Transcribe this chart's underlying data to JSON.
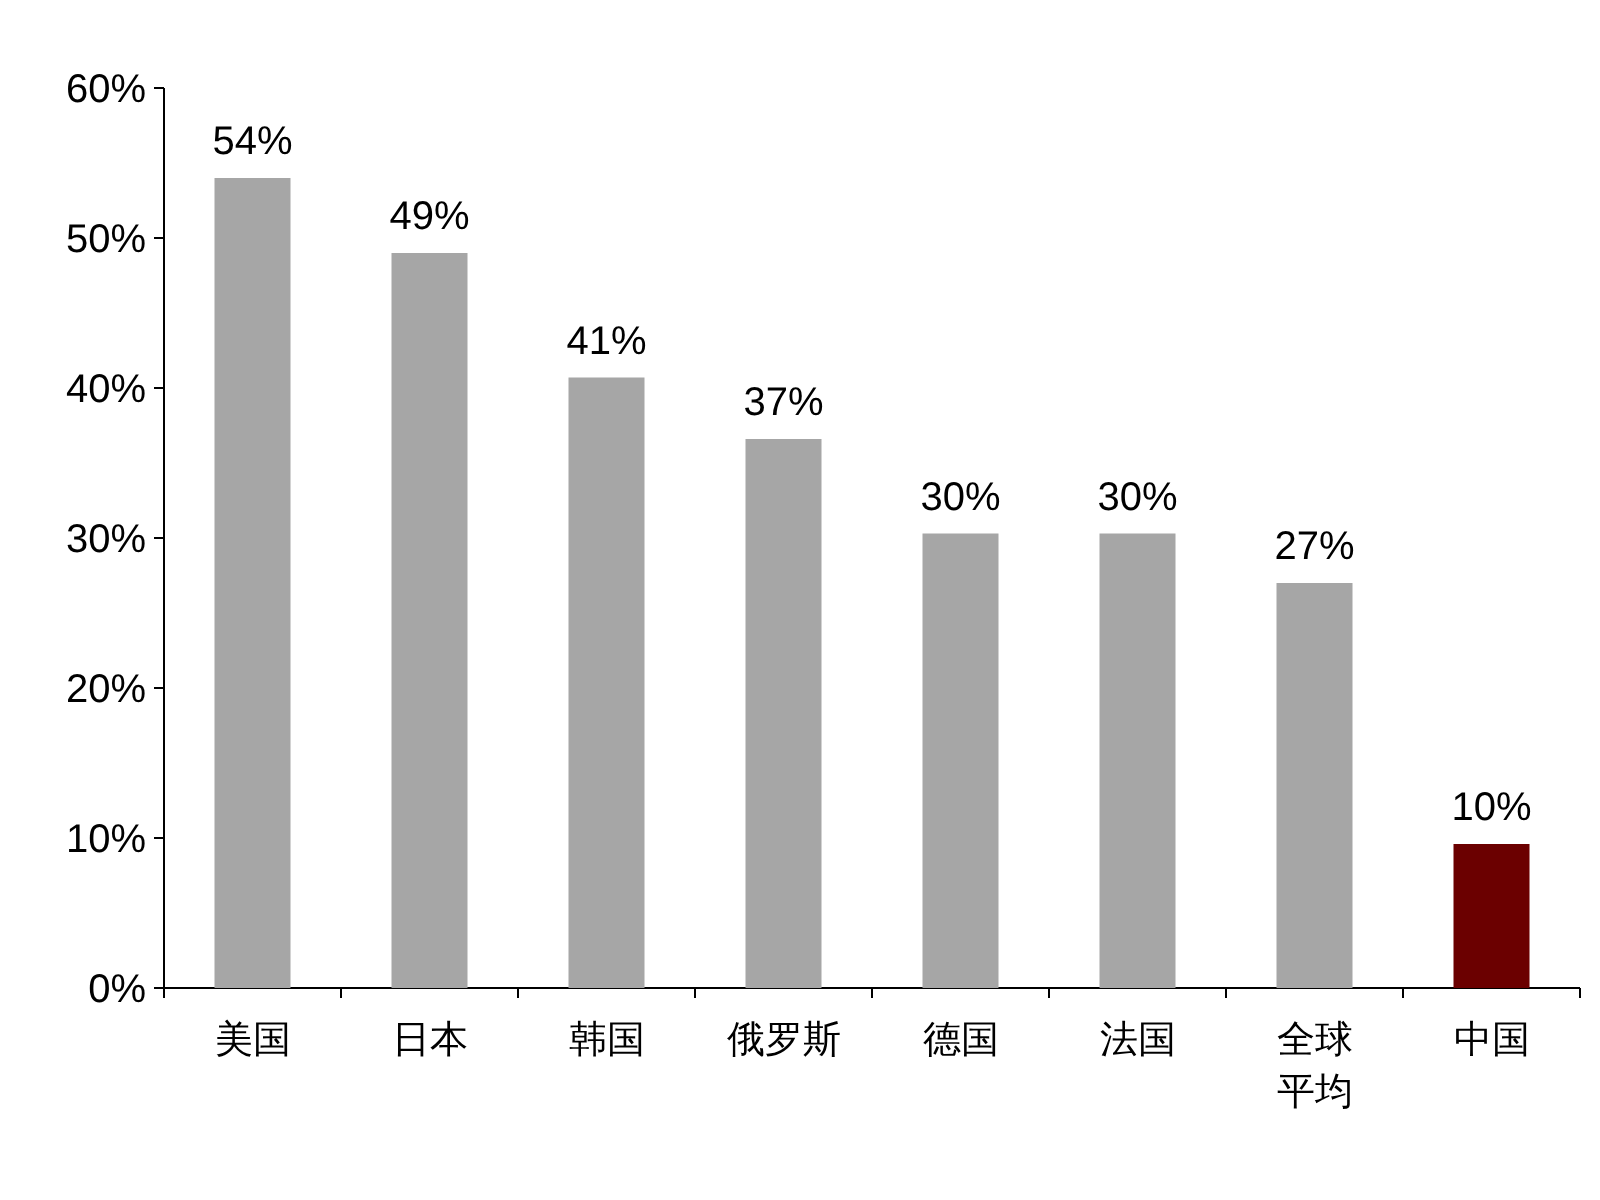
{
  "chart_data": {
    "type": "bar",
    "categories": [
      "美国",
      "日本",
      "韩国",
      "俄罗斯",
      "德国",
      "法国",
      "全球平均",
      "中国"
    ],
    "values": [
      54,
      49,
      40.7,
      36.6,
      30.3,
      30.3,
      27,
      9.6
    ],
    "value_labels": [
      "54%",
      "49%",
      "41%",
      "37%",
      "30%",
      "30%",
      "27%",
      "10%"
    ],
    "colors": [
      "#a6a6a6",
      "#a6a6a6",
      "#a6a6a6",
      "#a6a6a6",
      "#a6a6a6",
      "#a6a6a6",
      "#a6a6a6",
      "#6b0000"
    ],
    "ylim": [
      0,
      60
    ],
    "yticks": [
      {
        "value": 0,
        "label": "0%"
      },
      {
        "value": 10,
        "label": "10%"
      },
      {
        "value": 20,
        "label": "20%"
      },
      {
        "value": 30,
        "label": "30%"
      },
      {
        "value": 40,
        "label": "40%"
      },
      {
        "value": 50,
        "label": "50%"
      },
      {
        "value": 60,
        "label": "60%"
      }
    ],
    "tick_labels": "xy"
  }
}
